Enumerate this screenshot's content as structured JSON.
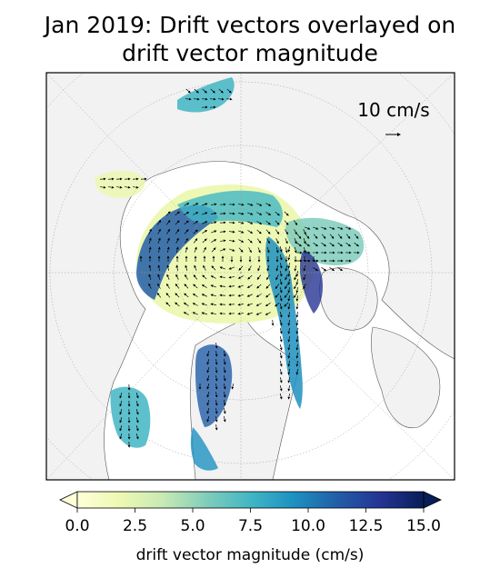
{
  "chart_data": {
    "type": "vector-field map",
    "title_line1": "Jan 2019: Drift vectors overlayed on",
    "title_line2": "drift vector magnitude",
    "scale_key": {
      "label": "10 cm/s",
      "value": 10
    },
    "colorbar": {
      "label": "drift vector magnitude (cm/s)",
      "range": [
        0,
        15
      ],
      "ticks": [
        "0.0",
        "2.5",
        "5.0",
        "7.5",
        "10.0",
        "12.5",
        "15.0"
      ],
      "extend": "both",
      "colormap": [
        "#ffffd9",
        "#edf8b1",
        "#c7e9b4",
        "#7fcdbb",
        "#41b6c4",
        "#1d91c0",
        "#225ea8",
        "#253494",
        "#081d58"
      ]
    },
    "land_color": "#f2f2f2",
    "ocean_color": "#ffffff",
    "projection": "north polar stereographic",
    "gridlines": true
  }
}
